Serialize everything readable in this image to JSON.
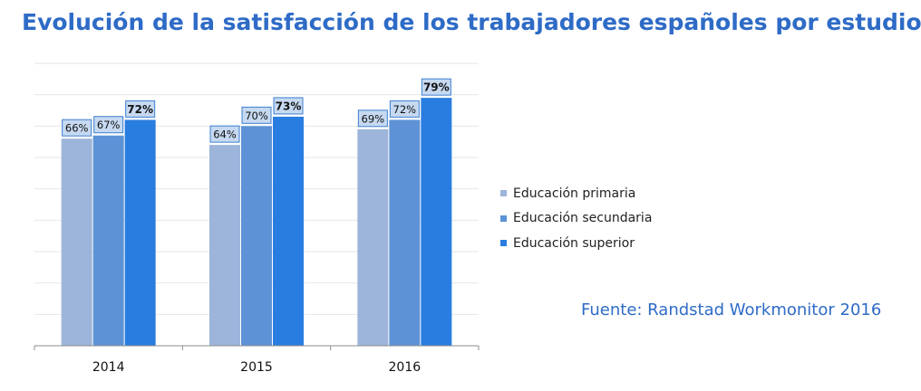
{
  "title": "Evolución de la satisfacción de los trabajadores españoles por estudios",
  "source": "Fuente: Randstad Workmonitor 2016",
  "colors": {
    "primaria": "#9db5da",
    "secundaria": "#5d93d6",
    "superior": "#2a7de0",
    "title": "#2e6bc6",
    "label_border": "#3d7fd0",
    "label_fill": "#c6d9f1"
  },
  "chart_data": {
    "type": "bar",
    "categories": [
      "2014",
      "2015",
      "2016"
    ],
    "series": [
      {
        "name": "Educación primaria",
        "values": [
          66,
          64,
          69
        ],
        "labels": [
          "66%",
          "64%",
          "69%"
        ]
      },
      {
        "name": "Educación secundaria",
        "values": [
          67,
          70,
          72
        ],
        "labels": [
          "67%",
          "70%",
          "72%"
        ]
      },
      {
        "name": "Educación superior",
        "values": [
          72,
          73,
          79
        ],
        "labels": [
          "72%",
          "73%",
          "79%"
        ]
      }
    ],
    "ylim": [
      0,
      90
    ],
    "grid": true,
    "legend_position": "right"
  }
}
